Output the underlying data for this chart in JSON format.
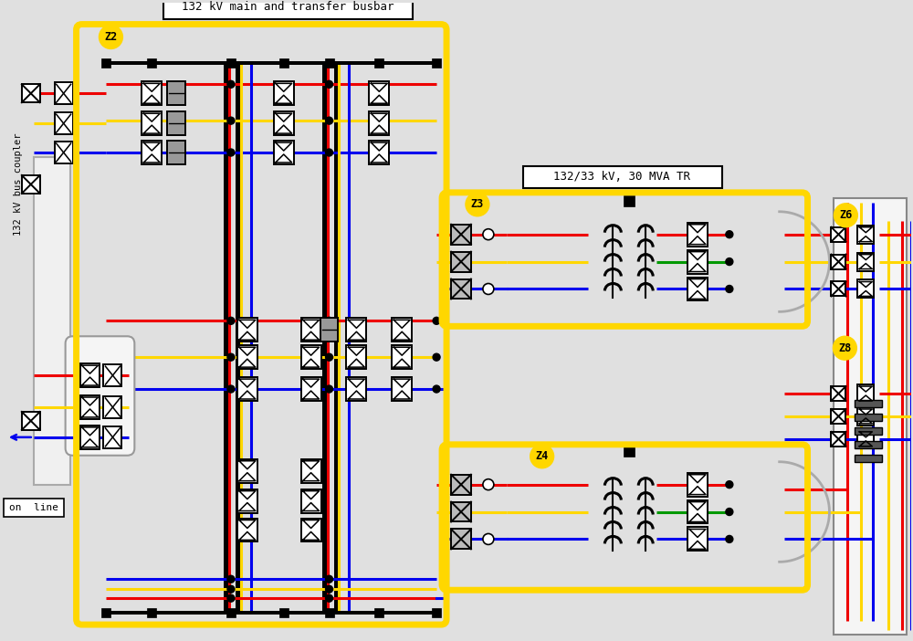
{
  "bg_color": "#e0e0e0",
  "title_box": "132 kV main and transfer busbar",
  "title_box2": "132/33 kV, 30 MVA TR",
  "label_z2": "Z2",
  "label_z3": "Z3",
  "label_z4": "Z4",
  "label_z6": "Z6",
  "label_z8": "Z8",
  "label_bus_coupler": "132 kV bus coupler",
  "label_on_line": "on  line",
  "yellow_color": "#FFD700",
  "red_color": "#EE0000",
  "blue_color": "#0000EE",
  "green_color": "#009900",
  "black_color": "#000000",
  "white_color": "#FFFFFF",
  "lw_wire": 2.2,
  "lw_bus": 4.0,
  "lw_yellow": 5.0
}
